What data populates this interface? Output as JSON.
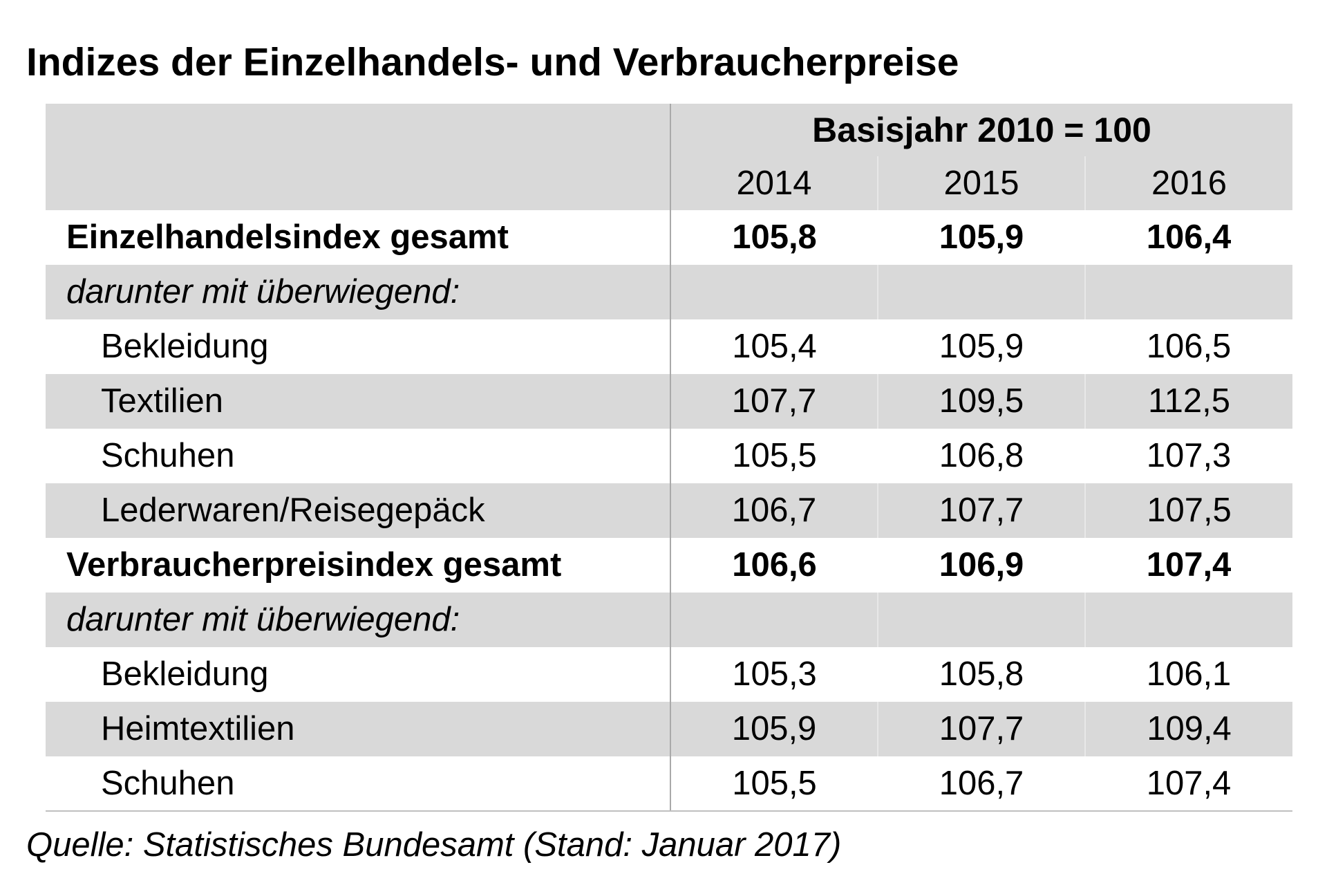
{
  "title": "Indizes der Einzelhandels- und Verbraucherpreise",
  "table": {
    "basis_label": "Basisjahr 2010 = 100",
    "years": [
      "2014",
      "2015",
      "2016"
    ],
    "rows": [
      {
        "label": "Einzelhandelsindex gesamt",
        "values": [
          "105,8",
          "105,9",
          "106,4"
        ]
      },
      {
        "label": "darunter mit überwiegend:",
        "values": [
          "",
          "",
          ""
        ]
      },
      {
        "label": "Bekleidung",
        "values": [
          "105,4",
          "105,9",
          "106,5"
        ]
      },
      {
        "label": "Textilien",
        "values": [
          "107,7",
          "109,5",
          "112,5"
        ]
      },
      {
        "label": "Schuhen",
        "values": [
          "105,5",
          "106,8",
          "107,3"
        ]
      },
      {
        "label": "Lederwaren/Reisegepäck",
        "values": [
          "106,7",
          "107,7",
          "107,5"
        ]
      },
      {
        "label": "Verbraucherpreisindex gesamt",
        "values": [
          "106,6",
          "106,9",
          "107,4"
        ]
      },
      {
        "label": "darunter mit überwiegend:",
        "values": [
          "",
          "",
          ""
        ]
      },
      {
        "label": "Bekleidung",
        "values": [
          "105,3",
          "105,8",
          "106,1"
        ]
      },
      {
        "label": "Heimtextilien",
        "values": [
          "105,9",
          "107,7",
          "109,4"
        ]
      },
      {
        "label": "Schuhen",
        "values": [
          "105,5",
          "106,7",
          "107,4"
        ]
      }
    ]
  },
  "source": "Quelle: Statistisches Bundesamt (Stand: Januar 2017)"
}
